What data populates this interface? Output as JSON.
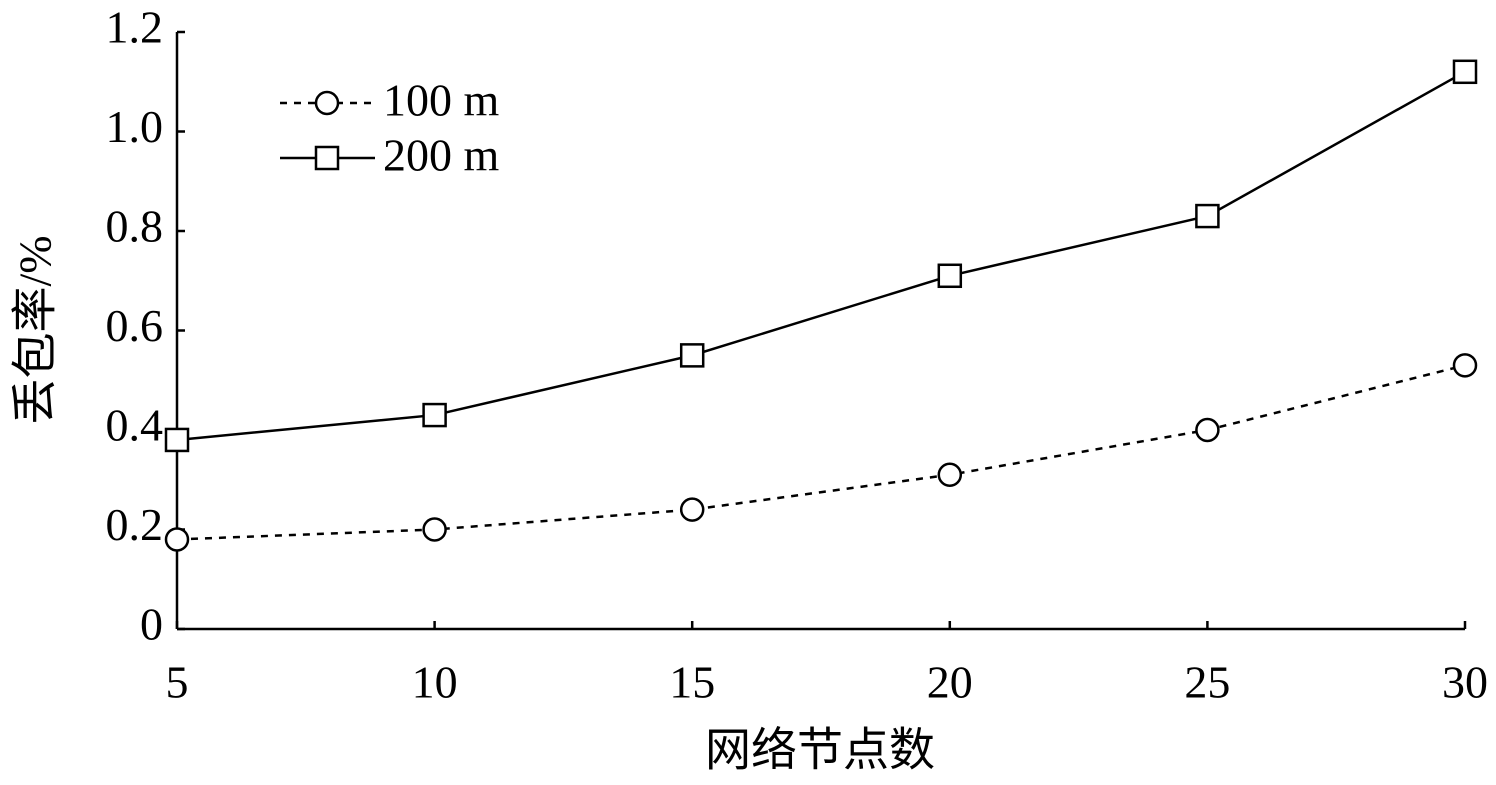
{
  "chart_data": {
    "type": "line",
    "x_label": "网络节点数",
    "y_label": "丢包率/%",
    "x": [
      5,
      10,
      15,
      20,
      25,
      30
    ],
    "series": [
      {
        "name": "100 m",
        "color": "#000000",
        "line_style": "dashed",
        "marker": "circle",
        "values": [
          0.18,
          0.2,
          0.24,
          0.31,
          0.4,
          0.53
        ]
      },
      {
        "name": "200 m",
        "color": "#000000",
        "line_style": "solid",
        "marker": "square",
        "values": [
          0.38,
          0.43,
          0.55,
          0.71,
          0.83,
          1.12
        ]
      }
    ],
    "xlim": [
      5,
      30
    ],
    "xticks": [
      5,
      10,
      15,
      20,
      25,
      30
    ],
    "ylim": [
      0,
      1.2
    ],
    "yticks": [
      0,
      0.2,
      0.4,
      0.6,
      0.8,
      {
        "value": 1,
        "label": "1.0"
      },
      1.2
    ],
    "grid": false,
    "legend": "upper-left"
  }
}
